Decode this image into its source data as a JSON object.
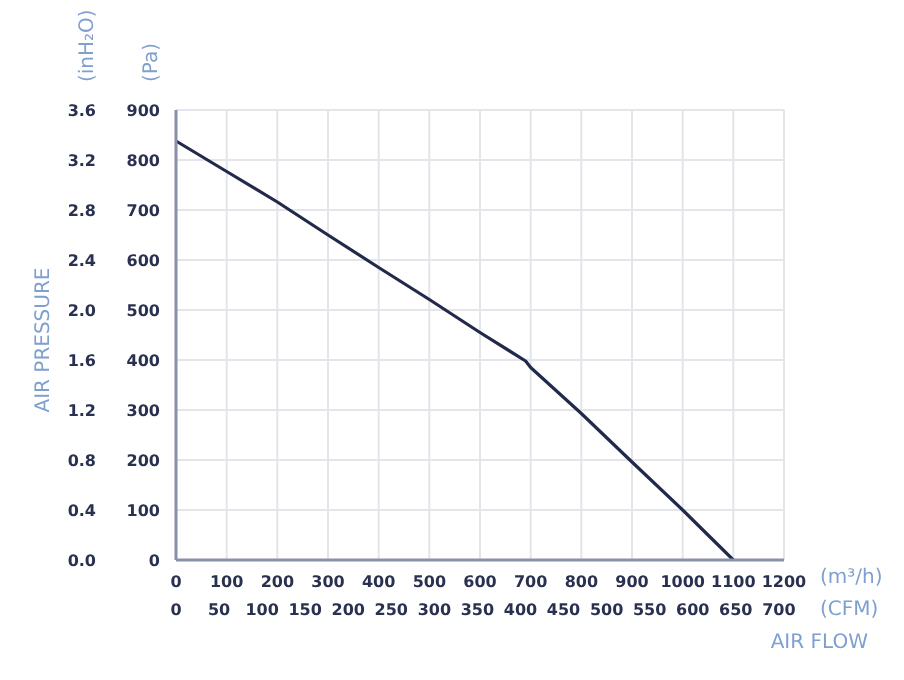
{
  "chart_data": {
    "type": "line",
    "xlabel": "(m³/h)",
    "x2label": "(CFM)",
    "ylabel": "(Pa)",
    "y2label": "(inH₂O)",
    "annotations": [
      "AIR PRESSURE",
      "AIR FLOW"
    ],
    "x": [
      0,
      100,
      200,
      300,
      400,
      500,
      600,
      690,
      700,
      800,
      900,
      1000,
      1050,
      1100
    ],
    "series": [
      {
        "color": "#22294a",
        "values": [
          838,
          777,
          716,
          650,
          585,
          521,
          455,
          398,
          385,
          293,
          196,
          100,
          50,
          0
        ]
      }
    ],
    "xlim": [
      0,
      1200
    ],
    "xticks": [
      0,
      100,
      200,
      300,
      400,
      500,
      600,
      700,
      800,
      900,
      1000,
      1100,
      1200
    ],
    "x2lim": [
      0,
      706
    ],
    "x2ticks": [
      0,
      50,
      100,
      150,
      200,
      250,
      300,
      350,
      400,
      450,
      500,
      550,
      600,
      650,
      700
    ],
    "ylim": [
      0,
      900
    ],
    "yticks": [
      0,
      100,
      200,
      300,
      400,
      500,
      600,
      700,
      800,
      900
    ],
    "y2lim": [
      0,
      3.6
    ],
    "y2ticks": [
      {
        "value": 0,
        "label": "0.0"
      },
      0.4,
      0.8,
      1.2,
      1.6,
      {
        "value": 2,
        "label": "2.0"
      },
      2.4,
      2.8,
      3.2,
      3.6
    ],
    "grid": true,
    "marker": "none",
    "line_style": "solid"
  }
}
